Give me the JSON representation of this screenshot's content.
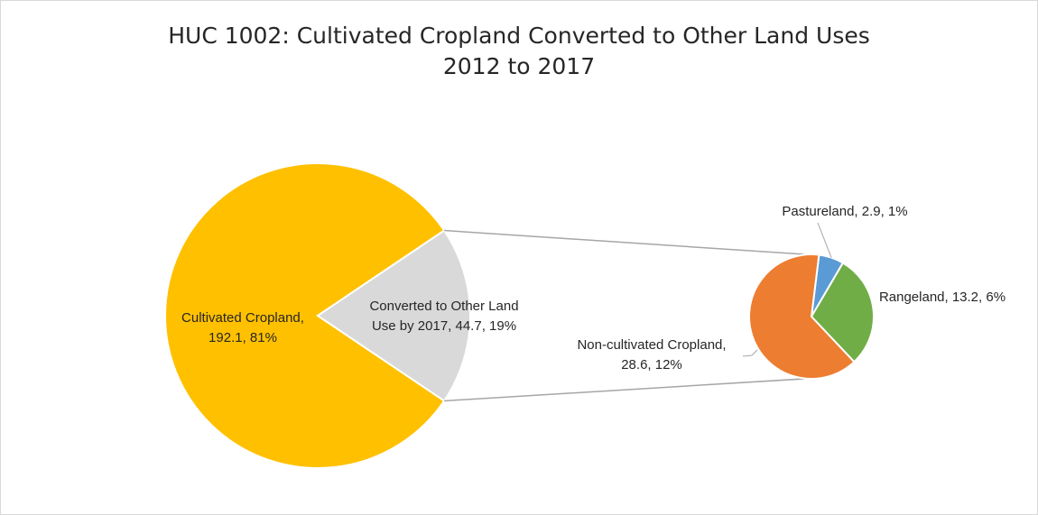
{
  "chart_data": {
    "type": "pie",
    "variant": "pie-of-pie",
    "title_line1": "HUC 1002: Cultivated Cropland Converted to Other Land Uses",
    "title_line2": "2012 to 2017",
    "main_pie": [
      {
        "name": "Cultivated Cropland",
        "value": 192.1,
        "percent": "81%",
        "color": "#FFC000",
        "label_line1": "Cultivated Cropland,",
        "label_line2": "192.1, 81%"
      },
      {
        "name": "Converted to Other Land Use by 2017",
        "value": 44.7,
        "percent": "19%",
        "color": "#D9D9D9",
        "label_line1": "Converted to Other Land",
        "label_line2": "Use by 2017, 44.7, 19%"
      }
    ],
    "secondary_pie": [
      {
        "name": "Pastureland",
        "value": 2.9,
        "percent": "1%",
        "color": "#5B9BD5",
        "label_line1": "Pastureland, 2.9, 1%"
      },
      {
        "name": "Rangeland",
        "value": 13.2,
        "percent": "6%",
        "color": "#70AD47",
        "label_line1": "Rangeland, 13.2, 6%"
      },
      {
        "name": "Non-cultivated Cropland",
        "value": 28.6,
        "percent": "12%",
        "color": "#ED7D31",
        "label_line1": "Non-cultivated Cropland,",
        "label_line2": "28.6, 12%"
      }
    ],
    "connector_color": "#A6A6A6"
  }
}
